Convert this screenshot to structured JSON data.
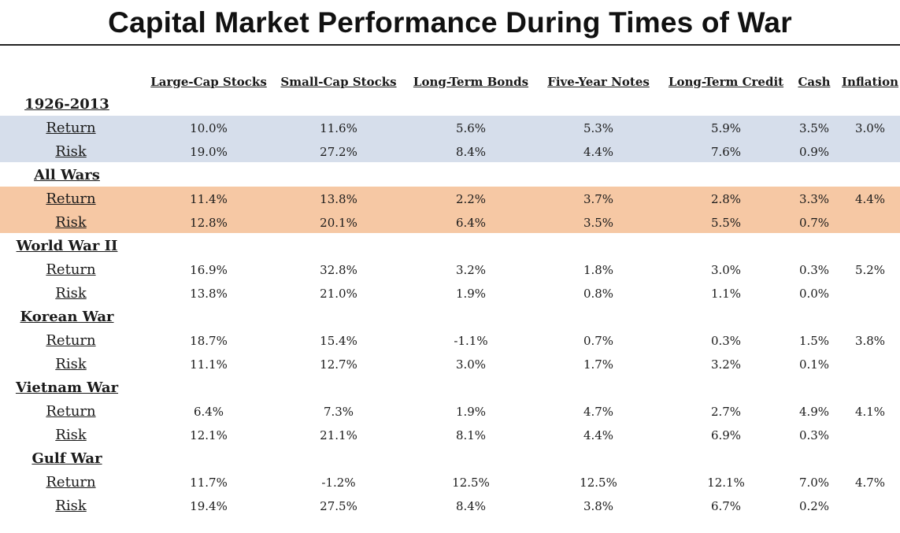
{
  "title": "Capital Market Performance During Times of War",
  "colors": {
    "band_baseline": "#d6deeb",
    "band_allwars": "#f6c8a4"
  },
  "columns": [
    "Large-Cap Stocks",
    "Small-Cap Stocks",
    "Long-Term Bonds",
    "Five-Year Notes",
    "Long-Term Credit",
    "Cash",
    "Inflation"
  ],
  "sections": [
    {
      "name": "1926-2013",
      "rows": [
        {
          "label": "Return",
          "values": [
            "10.0%",
            "11.6%",
            "5.6%",
            "5.3%",
            "5.9%",
            "3.5%",
            "3.0%"
          ]
        },
        {
          "label": "Risk",
          "values": [
            "19.0%",
            "27.2%",
            "8.4%",
            "4.4%",
            "7.6%",
            "0.9%",
            ""
          ]
        }
      ]
    },
    {
      "name": "All Wars",
      "rows": [
        {
          "label": "Return",
          "values": [
            "11.4%",
            "13.8%",
            "2.2%",
            "3.7%",
            "2.8%",
            "3.3%",
            "4.4%"
          ]
        },
        {
          "label": "Risk",
          "values": [
            "12.8%",
            "20.1%",
            "6.4%",
            "3.5%",
            "5.5%",
            "0.7%",
            ""
          ]
        }
      ]
    },
    {
      "name": "World War II",
      "rows": [
        {
          "label": "Return",
          "values": [
            "16.9%",
            "32.8%",
            "3.2%",
            "1.8%",
            "3.0%",
            "0.3%",
            "5.2%"
          ]
        },
        {
          "label": "Risk",
          "values": [
            "13.8%",
            "21.0%",
            "1.9%",
            "0.8%",
            "1.1%",
            "0.0%",
            ""
          ]
        }
      ]
    },
    {
      "name": "Korean War",
      "rows": [
        {
          "label": "Return",
          "values": [
            "18.7%",
            "15.4%",
            "-1.1%",
            "0.7%",
            "0.3%",
            "1.5%",
            "3.8%"
          ]
        },
        {
          "label": "Risk",
          "values": [
            "11.1%",
            "12.7%",
            "3.0%",
            "1.7%",
            "3.2%",
            "0.1%",
            ""
          ]
        }
      ]
    },
    {
      "name": "Vietnam War",
      "rows": [
        {
          "label": "Return",
          "values": [
            "6.4%",
            "7.3%",
            "1.9%",
            "4.7%",
            "2.7%",
            "4.9%",
            "4.1%"
          ]
        },
        {
          "label": "Risk",
          "values": [
            "12.1%",
            "21.1%",
            "8.1%",
            "4.4%",
            "6.9%",
            "0.3%",
            ""
          ]
        }
      ]
    },
    {
      "name": "Gulf War",
      "rows": [
        {
          "label": "Return",
          "values": [
            "11.7%",
            "-1.2%",
            "12.5%",
            "12.5%",
            "12.1%",
            "7.0%",
            "4.7%"
          ]
        },
        {
          "label": "Risk",
          "values": [
            "19.4%",
            "27.5%",
            "8.4%",
            "3.8%",
            "6.7%",
            "0.2%",
            ""
          ]
        }
      ]
    }
  ]
}
